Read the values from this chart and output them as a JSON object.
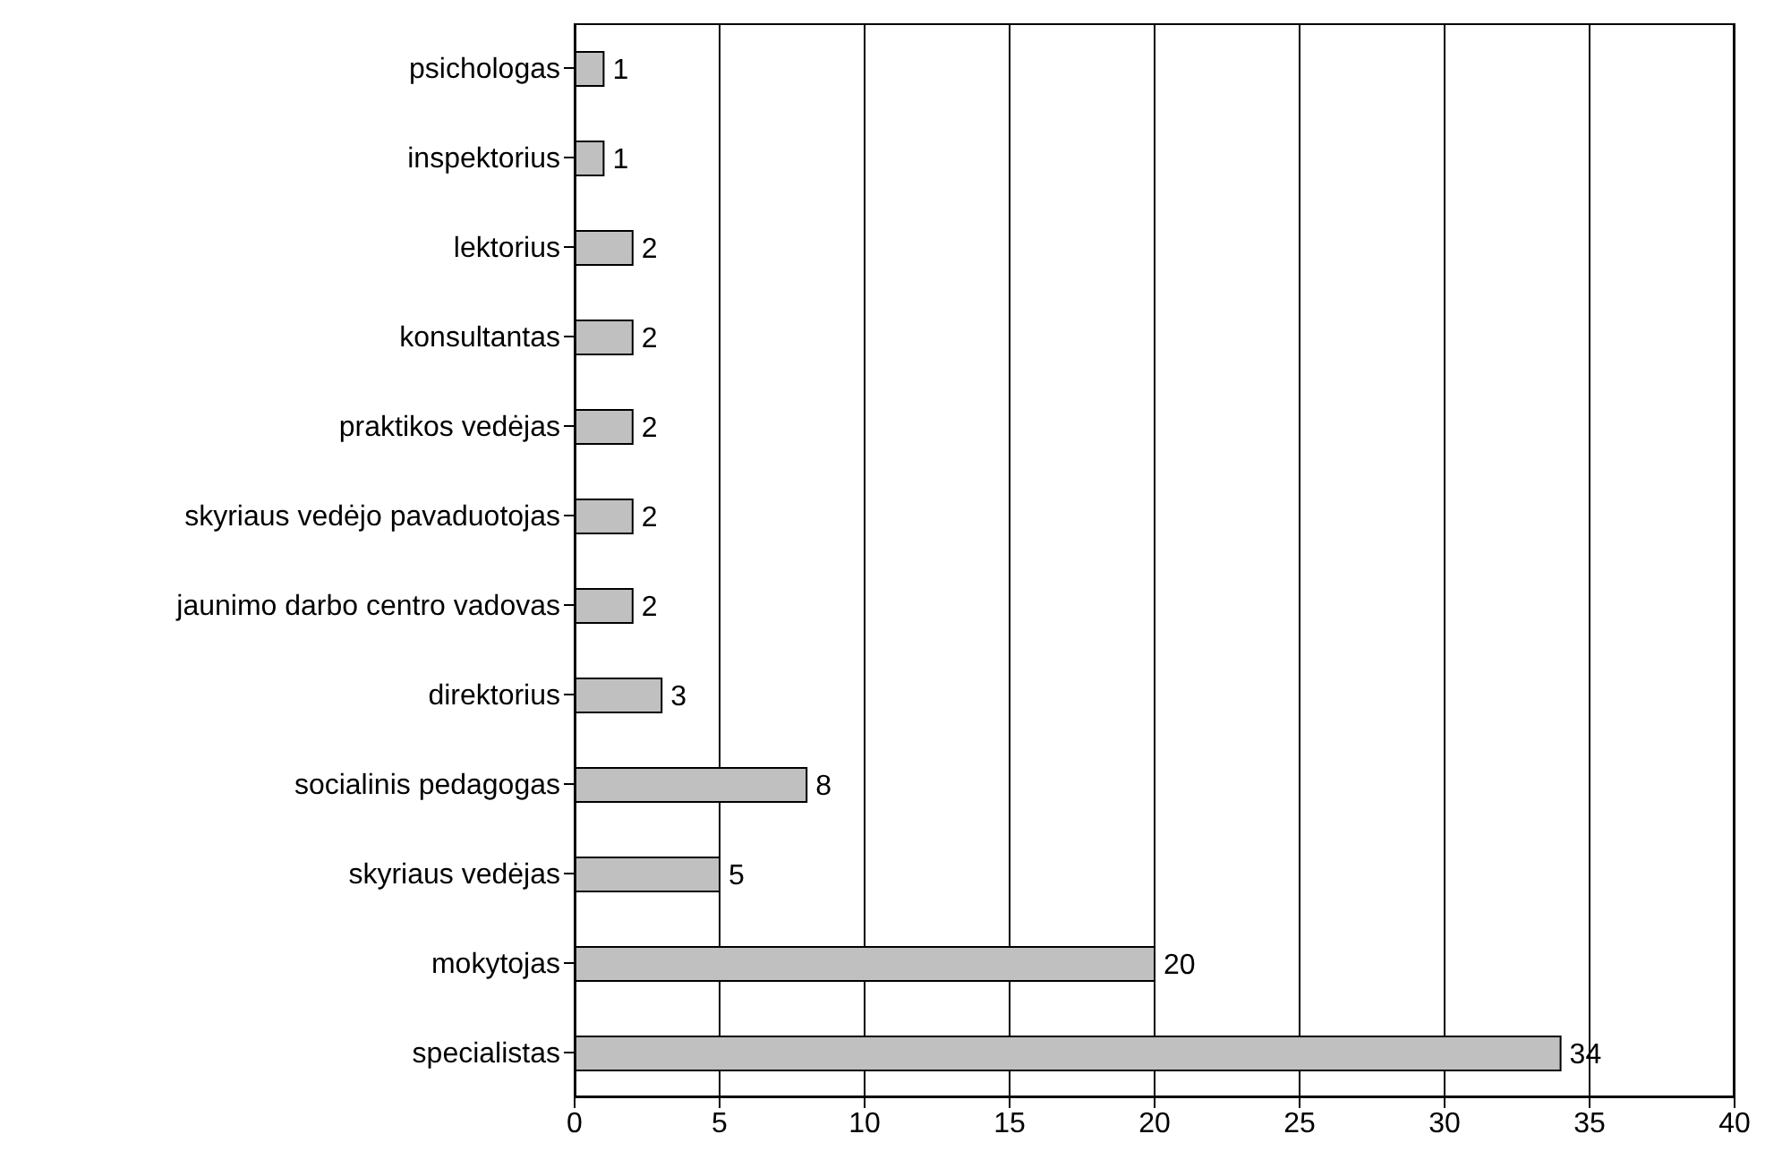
{
  "chart_data": {
    "type": "bar",
    "orientation": "horizontal",
    "categories": [
      "psichologas",
      "inspektorius",
      "lektorius",
      "konsultantas",
      "praktikos vedėjas",
      "skyriaus vedėjo pavaduotojas",
      "jaunimo darbo centro vadovas",
      "direktorius",
      "socialinis pedagogas",
      "skyriaus vedėjas",
      "mokytojas",
      "specialistas"
    ],
    "values": [
      1,
      1,
      2,
      2,
      2,
      2,
      2,
      3,
      8,
      5,
      20,
      34
    ],
    "color": "#c0c0c0",
    "xlim": [
      0,
      40
    ],
    "xticks": [
      0,
      5,
      10,
      15,
      20,
      25,
      30,
      35,
      40
    ],
    "grid": "x",
    "data_labels": true,
    "legend": false
  }
}
